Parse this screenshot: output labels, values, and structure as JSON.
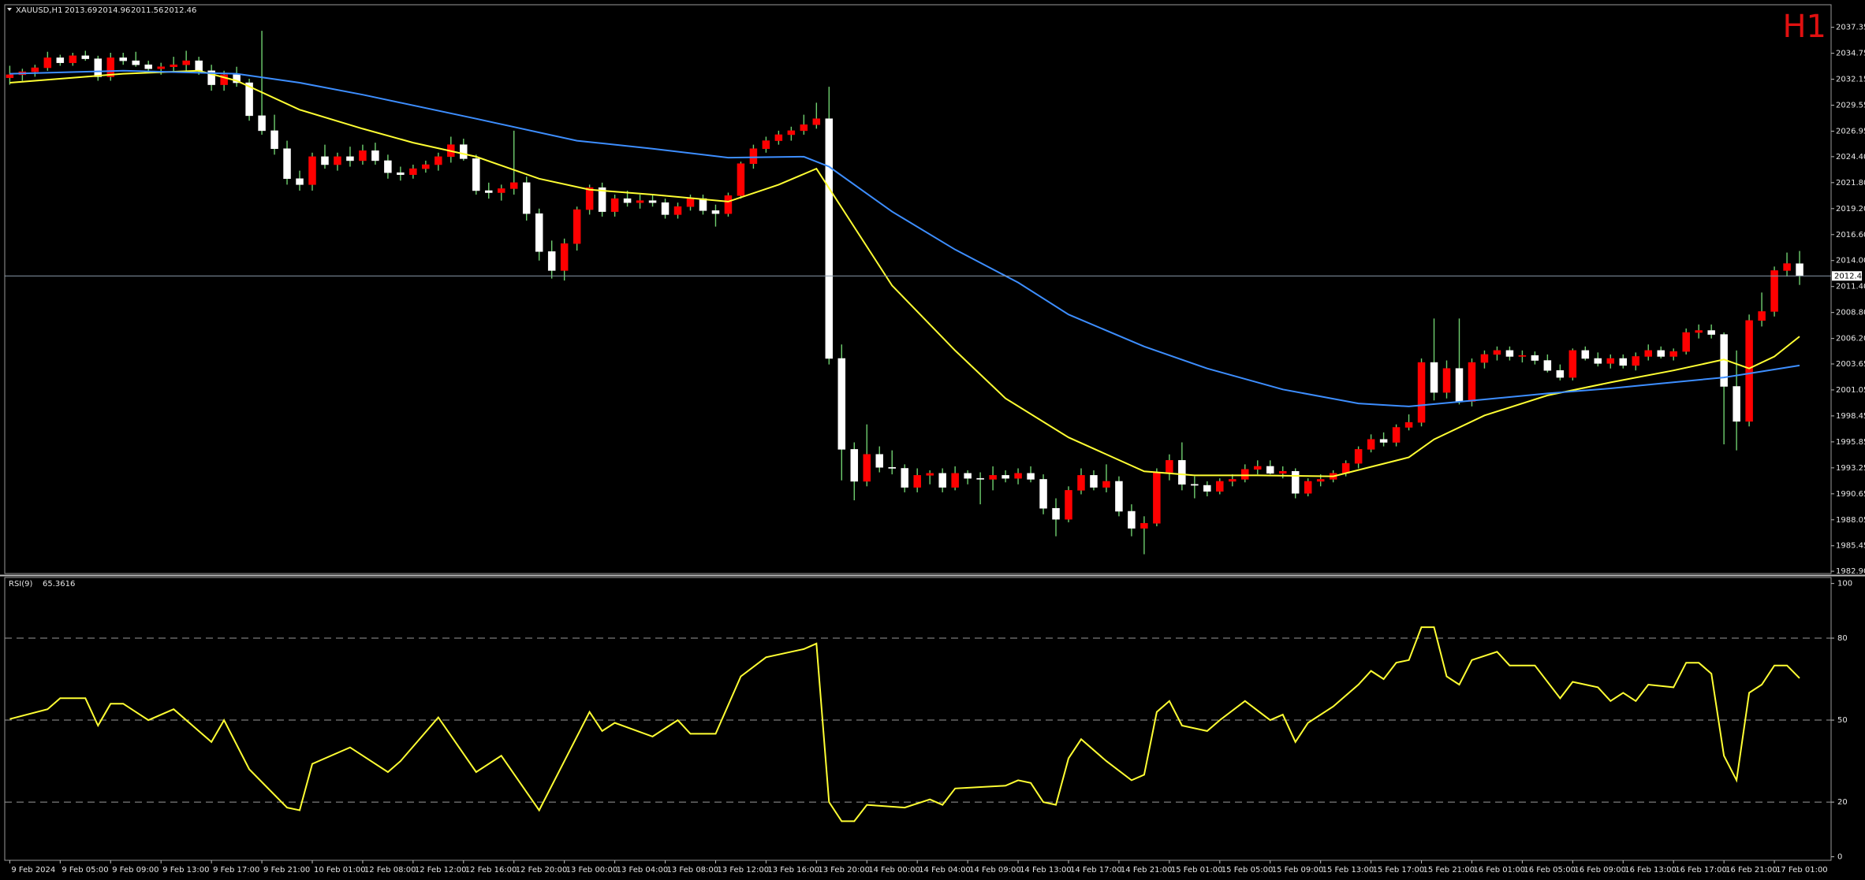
{
  "chart_data": {
    "type": "candlestick",
    "symbol": "XAUUSD,H1",
    "timeframe": "H1",
    "bull_color": "#ff0000",
    "bear_color": "#ffffff",
    "wick_color": "#6fcf6f",
    "xlim": [
      -0.4,
      144.5
    ],
    "ylim": [
      1982.67,
      2039.61
    ],
    "yticks": [
      2037.35,
      2034.75,
      2032.15,
      2029.55,
      2026.95,
      {
        "value": 2024.4,
        "label": "2024.40"
      },
      {
        "value": 2021.8,
        "label": "2021.80"
      },
      {
        "value": 2019.2,
        "label": "2019.20"
      },
      {
        "value": 2016.6,
        "label": "2016.60"
      },
      {
        "value": 2014,
        "label": "2014.00"
      },
      {
        "value": 2011.4,
        "label": "2011.40"
      },
      {
        "value": 2008.8,
        "label": "2008.80"
      },
      {
        "value": 2006.2,
        "label": "2006.20"
      },
      2003.65,
      2001.05,
      1998.45,
      1995.85,
      1993.25,
      1990.65,
      1988.05,
      1985.45,
      {
        "value": 1982.9,
        "label": "1982.90"
      }
    ],
    "xticks": [
      {
        "value": 0,
        "label": "9 Feb 2024"
      },
      {
        "value": 4,
        "label": "9 Feb 05:00"
      },
      {
        "value": 8,
        "label": "9 Feb 09:00"
      },
      {
        "value": 12,
        "label": "9 Feb 13:00"
      },
      {
        "value": 16,
        "label": "9 Feb 17:00"
      },
      {
        "value": 20,
        "label": "9 Feb 21:00"
      },
      {
        "value": 24,
        "label": "10 Feb 01:00"
      },
      {
        "value": 28,
        "label": "12 Feb 08:00"
      },
      {
        "value": 32,
        "label": "12 Feb 12:00"
      },
      {
        "value": 36,
        "label": "12 Feb 16:00"
      },
      {
        "value": 40,
        "label": "12 Feb 20:00"
      },
      {
        "value": 44,
        "label": "13 Feb 00:00"
      },
      {
        "value": 48,
        "label": "13 Feb 04:00"
      },
      {
        "value": 52,
        "label": "13 Feb 08:00"
      },
      {
        "value": 56,
        "label": "13 Feb 12:00"
      },
      {
        "value": 60,
        "label": "13 Feb 16:00"
      },
      {
        "value": 64,
        "label": "13 Feb 20:00"
      },
      {
        "value": 68,
        "label": "14 Feb 00:00"
      },
      {
        "value": 72,
        "label": "14 Feb 04:00"
      },
      {
        "value": 76,
        "label": "14 Feb 09:00"
      },
      {
        "value": 80,
        "label": "14 Feb 13:00"
      },
      {
        "value": 84,
        "label": "14 Feb 17:00"
      },
      {
        "value": 88,
        "label": "14 Feb 21:00"
      },
      {
        "value": 92,
        "label": "15 Feb 01:00"
      },
      {
        "value": 96,
        "label": "15 Feb 05:00"
      },
      {
        "value": 100,
        "label": "15 Feb 09:00"
      },
      {
        "value": 104,
        "label": "15 Feb 13:00"
      },
      {
        "value": 108,
        "label": "15 Feb 17:00"
      },
      {
        "value": 112,
        "label": "15 Feb 21:00"
      },
      {
        "value": 116,
        "label": "16 Feb 01:00"
      },
      {
        "value": 120,
        "label": "16 Feb 05:00"
      },
      {
        "value": 124,
        "label": "16 Feb 09:00"
      },
      {
        "value": 128,
        "label": "16 Feb 13:00"
      },
      {
        "value": 132,
        "label": "16 Feb 17:00"
      },
      {
        "value": 136,
        "label": "16 Feb 21:00"
      },
      {
        "value": 140,
        "label": "17 Feb 01:00"
      }
    ],
    "candles": [
      [
        2032.3,
        2033.5,
        2031.6,
        2032.6
      ],
      [
        2032.6,
        2033.2,
        2032.0,
        2032.9
      ],
      [
        2032.9,
        2033.6,
        2032.4,
        2033.3
      ],
      [
        2033.3,
        2034.9,
        2033.0,
        2034.3
      ],
      [
        2034.3,
        2034.6,
        2033.5,
        2033.8
      ],
      [
        2033.8,
        2034.8,
        2033.5,
        2034.5
      ],
      [
        2034.5,
        2035.0,
        2034.0,
        2034.2
      ],
      [
        2034.2,
        2034.5,
        2032.0,
        2032.4
      ],
      [
        2032.4,
        2034.8,
        2032.0,
        2034.3
      ],
      [
        2034.3,
        2034.8,
        2033.6,
        2034.0
      ],
      [
        2034.0,
        2034.9,
        2033.4,
        2033.6
      ],
      [
        2033.6,
        2034.0,
        2032.8,
        2033.2
      ],
      [
        2033.2,
        2033.8,
        2032.6,
        2033.4
      ],
      [
        2033.4,
        2034.4,
        2032.8,
        2033.6
      ],
      [
        2033.6,
        2035.0,
        2033.0,
        2034.0
      ],
      [
        2034.0,
        2034.4,
        2032.6,
        2033.0
      ],
      [
        2033.0,
        2033.6,
        2031.0,
        2031.6
      ],
      [
        2031.6,
        2033.0,
        2031.0,
        2032.6
      ],
      [
        2032.6,
        2033.4,
        2031.4,
        2031.8
      ],
      [
        2031.8,
        2032.2,
        2028.0,
        2028.5
      ],
      [
        2028.5,
        2037.0,
        2026.6,
        2027.0
      ],
      [
        2027.0,
        2028.6,
        2024.6,
        2025.2
      ],
      [
        2025.2,
        2026.0,
        2021.6,
        2022.2
      ],
      [
        2022.2,
        2023.0,
        2021.0,
        2021.6
      ],
      [
        2021.6,
        2024.8,
        2021.0,
        2024.4
      ],
      [
        2024.4,
        2025.6,
        2023.2,
        2023.6
      ],
      [
        2023.6,
        2024.8,
        2023.0,
        2024.4
      ],
      [
        2024.4,
        2025.4,
        2023.4,
        2024.0
      ],
      [
        2024.0,
        2025.6,
        2023.6,
        2025.0
      ],
      [
        2025.0,
        2025.8,
        2023.6,
        2024.0
      ],
      [
        2024.0,
        2024.6,
        2022.2,
        2022.8
      ],
      [
        2022.8,
        2023.4,
        2022.0,
        2022.6
      ],
      [
        2022.6,
        2023.6,
        2022.2,
        2023.2
      ],
      [
        2023.2,
        2024.0,
        2022.8,
        2023.6
      ],
      [
        2023.6,
        2024.8,
        2023.0,
        2024.4
      ],
      [
        2024.4,
        2026.4,
        2023.8,
        2025.6
      ],
      [
        2025.6,
        2026.2,
        2024.0,
        2024.2
      ],
      [
        2024.2,
        2024.6,
        2020.6,
        2021.0
      ],
      [
        2021.0,
        2021.8,
        2020.2,
        2020.8
      ],
      [
        2020.8,
        2021.6,
        2020.0,
        2021.2
      ],
      [
        2021.2,
        2027.0,
        2020.6,
        2021.8
      ],
      [
        2021.8,
        2022.4,
        2018.0,
        2018.7
      ],
      [
        2018.7,
        2019.2,
        2014.0,
        2014.9
      ],
      [
        2014.9,
        2016.0,
        2012.2,
        2013.0
      ],
      [
        2013.0,
        2016.2,
        2012.0,
        2015.7
      ],
      [
        2015.7,
        2019.4,
        2015.0,
        2019.1
      ],
      [
        2019.1,
        2021.6,
        2018.6,
        2021.3
      ],
      [
        2021.3,
        2021.8,
        2018.4,
        2018.9
      ],
      [
        2018.9,
        2020.6,
        2018.4,
        2020.2
      ],
      [
        2020.2,
        2021.0,
        2019.4,
        2019.8
      ],
      [
        2019.8,
        2020.6,
        2019.2,
        2020.0
      ],
      [
        2020.0,
        2020.6,
        2019.4,
        2019.8
      ],
      [
        2019.8,
        2020.2,
        2018.2,
        2018.6
      ],
      [
        2018.6,
        2019.8,
        2018.2,
        2019.4
      ],
      [
        2019.4,
        2020.6,
        2019.0,
        2020.2
      ],
      [
        2020.2,
        2020.6,
        2018.6,
        2019.0
      ],
      [
        2019.0,
        2019.6,
        2017.4,
        2018.7
      ],
      [
        2018.7,
        2020.8,
        2018.4,
        2020.5
      ],
      [
        2020.5,
        2023.9,
        2020.2,
        2023.7
      ],
      [
        2023.7,
        2025.6,
        2023.2,
        2025.2
      ],
      [
        2025.2,
        2026.4,
        2024.8,
        2026.0
      ],
      [
        2026.0,
        2027.0,
        2025.6,
        2026.6
      ],
      [
        2026.6,
        2027.4,
        2026.0,
        2027.0
      ],
      [
        2027.0,
        2028.6,
        2026.6,
        2027.6
      ],
      [
        2027.6,
        2029.8,
        2027.2,
        2028.2
      ],
      [
        2028.2,
        2031.4,
        2003.6,
        2004.2
      ],
      [
        2004.2,
        2005.6,
        1992.0,
        1995.1
      ],
      [
        1995.1,
        1995.8,
        1990.0,
        1991.9
      ],
      [
        1991.9,
        1997.6,
        1991.4,
        1994.6
      ],
      [
        1994.6,
        1995.4,
        1992.8,
        1993.3
      ],
      [
        1993.3,
        1995.0,
        1992.6,
        1993.2
      ],
      [
        1993.2,
        1993.6,
        1990.8,
        1991.3
      ],
      [
        1991.3,
        1993.2,
        1990.8,
        1992.5
      ],
      [
        1992.5,
        1993.0,
        1991.6,
        1992.7
      ],
      [
        1992.7,
        1993.2,
        1990.8,
        1991.3
      ],
      [
        1991.3,
        1993.4,
        1991.0,
        1992.7
      ],
      [
        1992.7,
        1993.0,
        1991.6,
        1992.2
      ],
      [
        1992.2,
        1992.8,
        1989.6,
        1992.1
      ],
      [
        1992.1,
        1993.4,
        1991.0,
        1992.5
      ],
      [
        1992.5,
        1993.0,
        1991.8,
        1992.2
      ],
      [
        1992.2,
        1993.2,
        1991.6,
        1992.7
      ],
      [
        1992.7,
        1993.4,
        1991.8,
        1992.1
      ],
      [
        1992.1,
        1992.6,
        1988.6,
        1989.2
      ],
      [
        1989.2,
        1990.2,
        1986.4,
        1988.1
      ],
      [
        1988.1,
        1991.4,
        1987.8,
        1991.0
      ],
      [
        1991.0,
        1993.2,
        1990.6,
        1992.5
      ],
      [
        1992.5,
        1993.0,
        1991.0,
        1991.3
      ],
      [
        1991.3,
        1993.6,
        1990.8,
        1991.9
      ],
      [
        1991.9,
        1992.4,
        1988.4,
        1988.9
      ],
      [
        1988.9,
        1989.6,
        1986.4,
        1987.2
      ],
      [
        1987.2,
        1988.4,
        1984.6,
        1987.7
      ],
      [
        1987.7,
        1993.2,
        1987.4,
        1992.8
      ],
      [
        1992.8,
        1994.6,
        1992.0,
        1994.0
      ],
      [
        1994.0,
        1995.8,
        1991.0,
        1991.6
      ],
      [
        1991.6,
        1992.4,
        1990.2,
        1991.5
      ],
      [
        1991.5,
        1991.9,
        1990.4,
        1990.9
      ],
      [
        1990.9,
        1992.2,
        1990.6,
        1991.9
      ],
      [
        1991.9,
        1992.6,
        1991.4,
        1992.1
      ],
      [
        1992.1,
        1993.6,
        1991.8,
        1993.1
      ],
      [
        1993.1,
        1994.0,
        1992.6,
        1993.4
      ],
      [
        1993.4,
        1994.0,
        1992.6,
        1992.7
      ],
      [
        1992.7,
        1993.4,
        1992.2,
        1992.9
      ],
      [
        1992.9,
        1993.2,
        1990.2,
        1990.7
      ],
      [
        1990.7,
        1992.2,
        1990.4,
        1991.9
      ],
      [
        1991.9,
        1992.6,
        1991.4,
        1992.1
      ],
      [
        1992.1,
        1993.0,
        1991.8,
        1992.7
      ],
      [
        1992.7,
        1994.0,
        1992.4,
        1993.7
      ],
      [
        1993.7,
        1995.4,
        1993.2,
        1995.1
      ],
      [
        1995.1,
        1996.6,
        1994.8,
        1996.1
      ],
      [
        1996.1,
        1996.8,
        1995.4,
        1995.8
      ],
      [
        1995.8,
        1997.6,
        1995.4,
        1997.3
      ],
      [
        1997.3,
        1998.6,
        1997.0,
        1997.8
      ],
      [
        1997.8,
        2004.2,
        1997.4,
        2003.8
      ],
      [
        2003.8,
        2008.2,
        2000.0,
        2000.8
      ],
      [
        2000.8,
        2004.0,
        2000.2,
        2003.2
      ],
      [
        2003.2,
        2008.2,
        1999.6,
        1999.9
      ],
      [
        1999.9,
        2004.2,
        1999.4,
        2003.8
      ],
      [
        2003.8,
        2005.0,
        2003.2,
        2004.6
      ],
      [
        2004.6,
        2005.4,
        2004.0,
        2005.0
      ],
      [
        2005.0,
        2005.4,
        2004.0,
        2004.4
      ],
      [
        2004.4,
        2005.0,
        2003.8,
        2004.5
      ],
      [
        2004.5,
        2004.9,
        2003.6,
        2004.0
      ],
      [
        2004.0,
        2004.6,
        2002.8,
        2003.0
      ],
      [
        2003.0,
        2003.6,
        2002.0,
        2002.3
      ],
      [
        2002.3,
        2005.2,
        2002.0,
        2005.0
      ],
      [
        2005.0,
        2005.4,
        2004.0,
        2004.2
      ],
      [
        2004.2,
        2004.8,
        2003.4,
        2003.7
      ],
      [
        2003.7,
        2004.6,
        2003.2,
        2004.2
      ],
      [
        2004.2,
        2004.6,
        2003.2,
        2003.5
      ],
      [
        2003.5,
        2004.8,
        2003.0,
        2004.4
      ],
      [
        2004.4,
        2005.6,
        2004.0,
        2005.0
      ],
      [
        2005.0,
        2005.4,
        2004.2,
        2004.4
      ],
      [
        2004.4,
        2005.2,
        2004.0,
        2004.9
      ],
      [
        2004.9,
        2007.2,
        2004.6,
        2006.8
      ],
      [
        2006.8,
        2007.6,
        2006.2,
        2007.0
      ],
      [
        2007.0,
        2007.6,
        2006.2,
        2006.6
      ],
      [
        2006.6,
        2006.8,
        1995.6,
        2001.4
      ],
      [
        2001.4,
        2005.0,
        1995.0,
        1997.9
      ],
      [
        1997.9,
        2008.6,
        1997.4,
        2008.0
      ],
      [
        2008.0,
        2010.8,
        2007.4,
        2008.9
      ],
      [
        2008.9,
        2013.4,
        2008.4,
        2013.0
      ],
      [
        2013.0,
        2014.8,
        2012.4,
        2013.7
      ],
      [
        2013.69,
        2014.96,
        2011.56,
        2012.46
      ]
    ],
    "lines": [
      {
        "color": "#ffff33",
        "x": [
          0,
          9,
          15,
          18,
          23,
          28,
          32,
          37,
          42,
          46,
          51,
          57,
          61,
          64,
          66,
          70,
          75,
          79,
          84,
          90,
          94,
          99,
          105,
          111,
          113,
          117,
          122,
          127,
          132,
          136,
          138,
          140,
          142
        ],
        "values": [
          2031.8,
          2032.7,
          2033.0,
          2032.0,
          2029.1,
          2027.2,
          2025.8,
          2024.4,
          2022.2,
          2021.1,
          2020.6,
          2019.9,
          2021.6,
          2023.2,
          2019.3,
          2011.5,
          2005.0,
          2000.2,
          1996.3,
          1992.9,
          1992.5,
          1992.5,
          1992.4,
          1994.3,
          1996.1,
          1998.5,
          2000.5,
          2001.8,
          2003.0,
          2004.1,
          2003.2,
          2004.4,
          2006.4
        ]
      },
      {
        "color": "#3d8eff",
        "x": [
          0,
          9,
          18,
          23,
          28,
          37,
          45,
          51,
          57,
          63,
          65,
          70,
          75,
          80,
          84,
          90,
          95,
          101,
          107,
          111,
          117,
          122,
          127,
          131,
          136,
          142
        ],
        "values": [
          2032.7,
          2033.0,
          2032.7,
          2031.8,
          2030.6,
          2028.2,
          2026.0,
          2025.2,
          2024.3,
          2024.4,
          2023.4,
          2018.9,
          2015.1,
          2011.8,
          2008.6,
          2005.4,
          2003.2,
          2001.1,
          1999.7,
          1999.4,
          2000.1,
          2000.7,
          2001.2,
          2001.7,
          2002.3,
          2003.5
        ]
      }
    ],
    "rsi": {
      "label": "RSI(9)",
      "color": "#ffff33",
      "ylim": [
        -1.3,
        102.2
      ],
      "yticks": [
        100,
        80,
        50,
        20,
        0
      ],
      "x": [
        0,
        3,
        4,
        6,
        7,
        8,
        9,
        11,
        13,
        16,
        17,
        19,
        22,
        23,
        24,
        27,
        30,
        31,
        34,
        37,
        39,
        42,
        46,
        47,
        48,
        51,
        53,
        54,
        56,
        58,
        60,
        62,
        63,
        64,
        65,
        66,
        67,
        68,
        71,
        73,
        74,
        75,
        79,
        80,
        81,
        82,
        83,
        84,
        85,
        87,
        89,
        90,
        91,
        92,
        93,
        95,
        96,
        98,
        100,
        101,
        102,
        103,
        105,
        107,
        108,
        109,
        110,
        111,
        112,
        113,
        114,
        115,
        116,
        118,
        119,
        121,
        123,
        124,
        126,
        127,
        128,
        129,
        130,
        132,
        133,
        134,
        135,
        136,
        137,
        138,
        139,
        140,
        141,
        142
      ],
      "values": [
        50.4,
        54,
        58,
        58,
        48,
        56,
        56,
        50,
        54,
        42,
        50,
        32,
        18,
        17,
        34,
        40,
        31,
        35,
        51,
        31,
        37,
        17,
        53,
        46,
        49,
        44,
        50,
        45,
        45,
        66,
        73,
        75,
        76,
        78,
        20,
        13,
        13,
        19,
        18,
        21,
        19,
        25,
        26,
        28,
        27,
        20,
        19,
        36,
        43,
        35,
        28,
        30,
        53,
        57,
        48,
        46,
        50,
        57,
        50,
        52,
        42,
        49,
        55,
        63,
        68,
        65,
        71,
        72,
        84,
        84,
        66,
        63,
        72,
        75,
        70,
        70,
        58,
        64,
        62,
        57,
        60,
        57,
        63,
        62,
        71,
        71,
        67,
        37,
        28,
        60,
        63,
        70,
        70,
        65.3616
      ]
    }
  }
}
